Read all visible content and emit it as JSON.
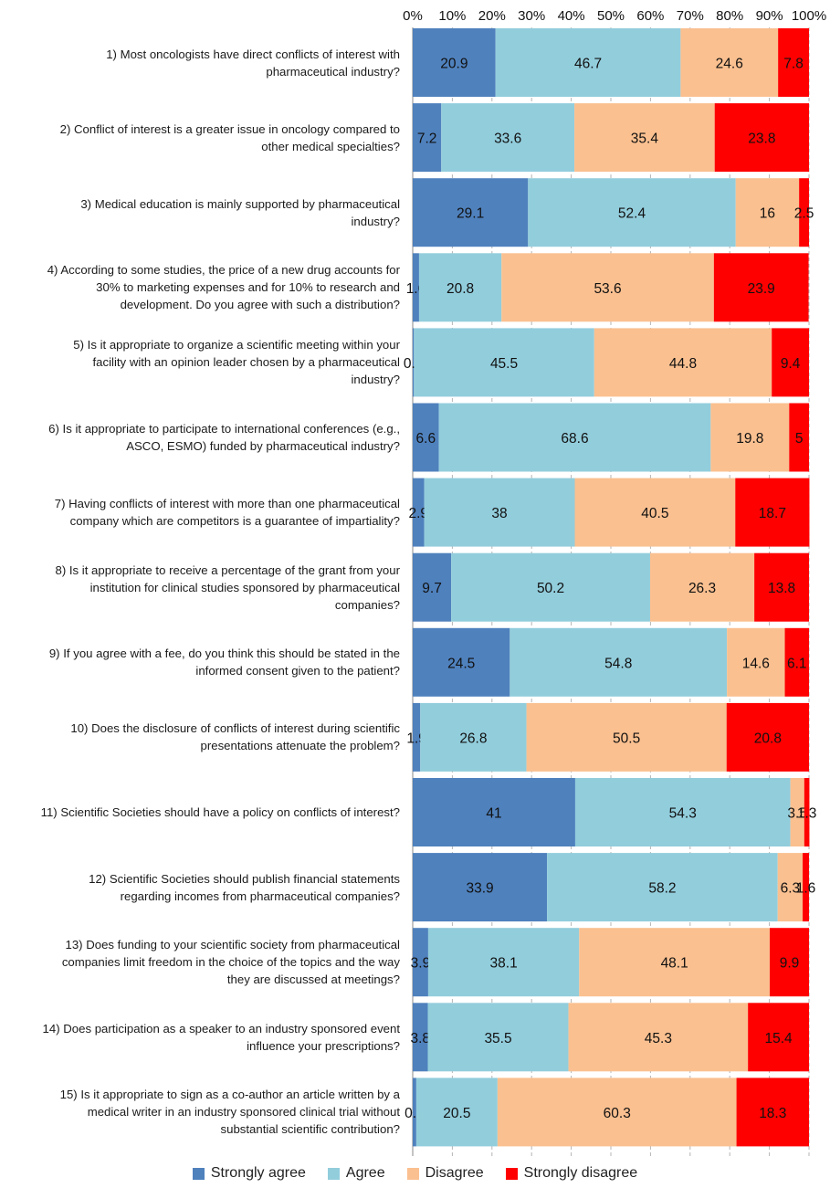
{
  "chart_data": {
    "type": "bar",
    "stacked": true,
    "orientation": "horizontal",
    "xlim": [
      0,
      100
    ],
    "x_ticks": [
      "0%",
      "10%",
      "20%",
      "30%",
      "40%",
      "50%",
      "60%",
      "70%",
      "80%",
      "90%",
      "100%"
    ],
    "grid": "vertical dashed",
    "legend_position": "bottom",
    "categories": [
      "1) Most oncologists have direct conflicts of interest with pharmaceutical industry?",
      "2) Conflict of interest is a greater issue in oncology compared to other medical specialties?",
      "3) Medical education is mainly supported by pharmaceutical industry?",
      "4) According to some studies, the price of a new drug accounts for 30% to marketing expenses and for 10% to research and development. Do you agree with such a distribution?",
      "5) Is it appropriate to organize a scientific meeting within your facility with an opinion leader chosen by a pharmaceutical industry?",
      "6) Is it appropriate to participate to international conferences (e.g., ASCO, ESMO) funded by pharmaceutical industry?",
      "7) Having conflicts of interest with more than one pharmaceutical company which are competitors is a guarantee of impartiality?",
      "8) Is it appropriate to receive a percentage of the grant from your institution for clinical studies sponsored by pharmaceutical companies?",
      "9) If you agree with a fee, do you think this should be stated in the informed consent given to the patient?",
      "10) Does the disclosure of conflicts of interest during scientific presentations attenuate the problem?",
      "11) Scientific Societies should have a policy on conflicts of interest?",
      "12) Scientific Societies should publish financial statements regarding incomes from pharmaceutical companies?",
      "13) Does funding to your scientific society from pharmaceutical companies limit freedom in the choice of the topics and the way they are discussed at meetings?",
      "14) Does participation as a speaker to an industry sponsored event influence your prescriptions?",
      "15) Is it appropriate to sign as a co-author an article written by a medical writer in an industry sponsored clinical trial without substantial scientific contribution?"
    ],
    "series": [
      {
        "name": "Strongly agree",
        "color": "#4f81bd",
        "values": [
          20.9,
          7.2,
          29.1,
          1.6,
          0.3,
          6.6,
          2.9,
          9.7,
          24.5,
          1.9,
          41,
          33.9,
          3.9,
          3.8,
          0.9
        ]
      },
      {
        "name": "Agree",
        "color": "#92cddc",
        "values": [
          46.7,
          33.6,
          52.4,
          20.8,
          45.5,
          68.6,
          38,
          50.2,
          54.8,
          26.8,
          54.3,
          58.2,
          38.1,
          35.5,
          20.5
        ]
      },
      {
        "name": "Disagree",
        "color": "#fac090",
        "values": [
          24.6,
          35.4,
          16,
          53.6,
          44.8,
          19.8,
          40.5,
          26.3,
          14.6,
          50.5,
          3.5,
          6.3,
          48.1,
          45.3,
          60.3
        ]
      },
      {
        "name": "Strongly disagree",
        "color": "#ff0000",
        "values": [
          7.8,
          23.8,
          2.5,
          23.9,
          9.4,
          5,
          18.7,
          13.8,
          6.1,
          20.8,
          1.3,
          1.6,
          9.9,
          15.4,
          18.3
        ]
      }
    ]
  },
  "question_lines": [
    [
      "1) Most oncologists have direct conflicts of interest with",
      "pharmaceutical industry?"
    ],
    [
      "2) Conflict of interest is a greater issue in oncology compared to",
      "other medical specialties?"
    ],
    [
      "3) Medical education is mainly supported by pharmaceutical",
      "industry?"
    ],
    [
      "4) According to some studies, the price of a new drug accounts for",
      "30% to marketing expenses and for 10% to research and",
      "development. Do you agree with such a distribution?"
    ],
    [
      "5) Is it appropriate to organize a scientific meeting within your",
      "facility with an opinion leader chosen by a pharmaceutical",
      "industry?"
    ],
    [
      "6) Is it appropriate to participate to international conferences (e.g.,",
      "ASCO, ESMO) funded by pharmaceutical industry?"
    ],
    [
      "7) Having conflicts of interest with more than one pharmaceutical",
      "company which are competitors is a guarantee of impartiality?"
    ],
    [
      "8) Is it appropriate to receive a percentage of the grant from your",
      "institution for clinical studies sponsored by pharmaceutical",
      "companies?"
    ],
    [
      "9) If you agree with a fee, do you think this should be stated in the",
      "informed consent given to the patient?"
    ],
    [
      "10) Does the disclosure of conflicts of interest during scientific",
      "presentations attenuate the problem?"
    ],
    [
      "11) Scientific Societies should have a policy on conflicts of interest?"
    ],
    [
      "12) Scientific Societies should publish financial statements",
      "regarding incomes from pharmaceutical companies?"
    ],
    [
      "13) Does funding to your scientific society from pharmaceutical",
      "companies limit freedom in the choice of the topics and the way",
      "they are discussed at meetings?"
    ],
    [
      "14) Does participation as a speaker to an industry sponsored event",
      "influence your prescriptions?"
    ],
    [
      "15) Is it appropriate to sign as a co-author an article written by a",
      "medical writer in an industry sponsored clinical trial without",
      "substantial scientific contribution?"
    ]
  ],
  "legend": {
    "items": [
      {
        "label": "Strongly agree",
        "color": "#4f81bd"
      },
      {
        "label": "Agree",
        "color": "#92cddc"
      },
      {
        "label": "Disagree",
        "color": "#fac090"
      },
      {
        "label": "Strongly disagree",
        "color": "#ff0000"
      }
    ]
  }
}
